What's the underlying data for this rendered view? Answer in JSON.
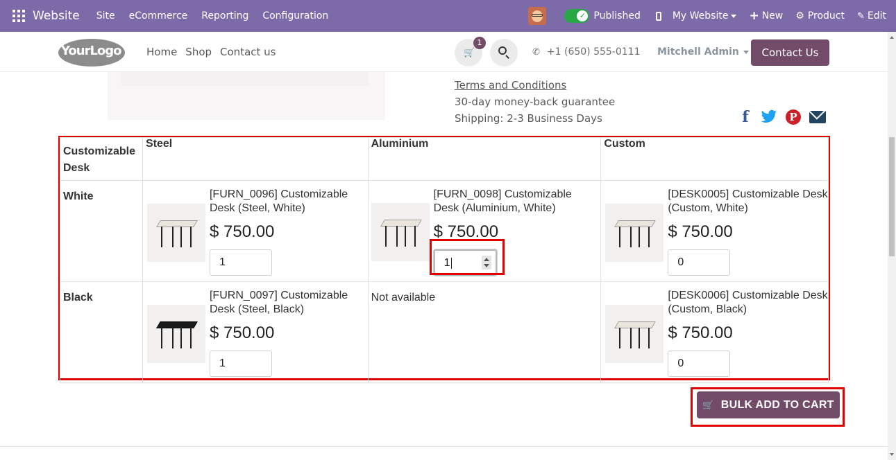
{
  "topbar": {
    "brand": "Website",
    "menu": [
      "Site",
      "eCommerce",
      "Reporting",
      "Configuration"
    ],
    "published_label": "Published",
    "my_website_label": "My Website",
    "new_label": "New",
    "product_label": "Product",
    "edit_label": "Edit"
  },
  "header": {
    "logo_text": "YourLogo",
    "nav": [
      "Home",
      "Shop",
      "Contact us"
    ],
    "cart_count": "1",
    "phone": "+1 (650) 555-0111",
    "user": "Mitchell Admin",
    "contact_button": "Contact Us"
  },
  "product_info": {
    "terms": "Terms and Conditions",
    "guarantee": "30-day money-back guarantee",
    "shipping": "Shipping: 2-3 Business Days"
  },
  "matrix": {
    "corner": "Customizable Desk",
    "columns": [
      "Steel",
      "Aluminium",
      "Custom"
    ],
    "rows": [
      {
        "label": "White",
        "cells": [
          {
            "name": "[FURN_0096] Customizable Desk (Steel, White)",
            "price": "$ 750.00",
            "qty": "1",
            "color": "white"
          },
          {
            "name": "[FURN_0098] Customizable Desk (Aluminium, White)",
            "price": "$ 750.00",
            "qty": "1",
            "color": "white"
          },
          {
            "name": "[DESK0005] Customizable Desk (Custom, White)",
            "price": "$ 750.00",
            "qty": "0",
            "color": "white"
          }
        ]
      },
      {
        "label": "Black",
        "cells": [
          {
            "name": "[FURN_0097] Customizable Desk (Steel, Black)",
            "price": "$ 750.00",
            "qty": "1",
            "color": "black"
          },
          {
            "not_available": "Not available"
          },
          {
            "name": "[DESK0006] Customizable Desk (Custom, Black)",
            "price": "$ 750.00",
            "qty": "0",
            "color": "white"
          }
        ]
      }
    ]
  },
  "bulk_button": "BULK ADD TO CART",
  "colors": {
    "topbar": "#7c6ba8",
    "primary": "#714b67",
    "highlight": "#e00000"
  }
}
